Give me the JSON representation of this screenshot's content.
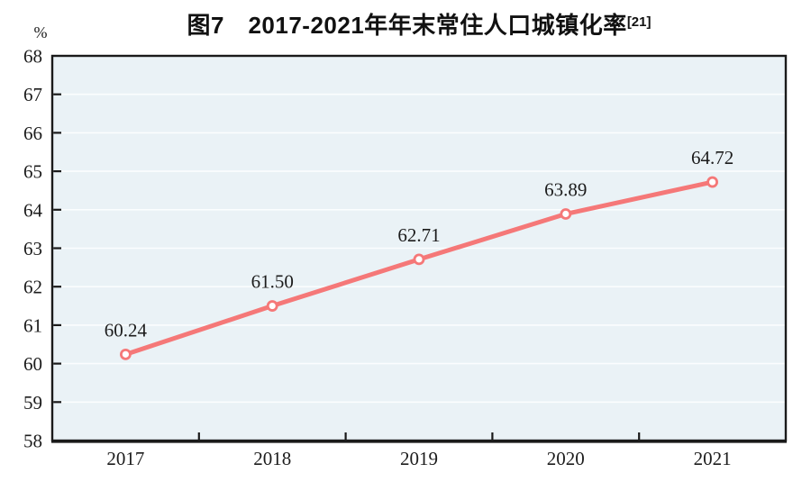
{
  "title": {
    "text": "图7　2017-2021年年末常住人口城镇化率",
    "superscript": "[21]"
  },
  "chart_data": {
    "type": "line",
    "title": "图7 2017-2021年年末常住人口城镇化率[21]",
    "categories": [
      "2017",
      "2018",
      "2019",
      "2020",
      "2021"
    ],
    "values": [
      60.24,
      61.5,
      62.71,
      63.89,
      64.72
    ],
    "point_labels": [
      "60.24",
      "61.50",
      "62.71",
      "63.89",
      "64.72"
    ],
    "xlabel": "",
    "ylabel": "%",
    "ylim": [
      58,
      68
    ],
    "ytick_step": 1,
    "grid": true,
    "legend": false,
    "colors": {
      "line": "#f57878",
      "marker_fill": "#ffffff",
      "marker_stroke": "#f57878",
      "plot_background": "#eaf2f6",
      "gridline": "#fbfdfe",
      "axis": "#1a1a1a",
      "text": "#1c1c1c"
    }
  }
}
